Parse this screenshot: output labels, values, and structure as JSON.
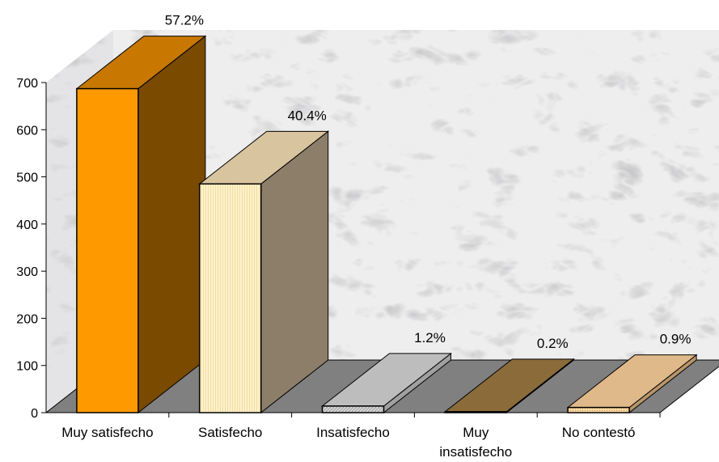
{
  "chart_data": {
    "type": "bar",
    "title": "",
    "xlabel": "",
    "ylabel": "",
    "ylim": [
      0,
      700
    ],
    "yticks": [
      0,
      100,
      200,
      300,
      400,
      500,
      600,
      700
    ],
    "ytick_labels": [
      "0",
      "100",
      "200",
      "300",
      "400",
      "500",
      "600",
      "700"
    ],
    "categories": [
      "Muy satisfecho",
      "Satisfecho",
      "Insatisfecho",
      "Muy insatisfecho",
      "No contestó"
    ],
    "category_label_lines": [
      [
        "Muy satisfecho"
      ],
      [
        "Satisfecho"
      ],
      [
        "Insatisfecho"
      ],
      [
        "Muy",
        "insatisfecho"
      ],
      [
        "No contestó"
      ]
    ],
    "values": [
      687,
      485,
      14,
      2,
      11
    ],
    "data_labels": [
      "57.2%",
      "40.4%",
      "1.2%",
      "0.2%",
      "0.9%"
    ],
    "bar_colors": {
      "front": [
        "#FF9900",
        "#FFF2CC",
        "#D9D9D9",
        "#7A5C2E",
        "#FFDCA8"
      ],
      "top": [
        "#C87800",
        "#D9C4A0",
        "#BDBDBD",
        "#8B6B3A",
        "#E0B98A"
      ],
      "side": [
        "#7A4A00",
        "#8C7E68",
        "#A0A0A0",
        "#5E4420",
        "#B8956A"
      ]
    },
    "floor_color": "#808080",
    "wall_style": "marble",
    "grid": false,
    "legend": "none"
  }
}
